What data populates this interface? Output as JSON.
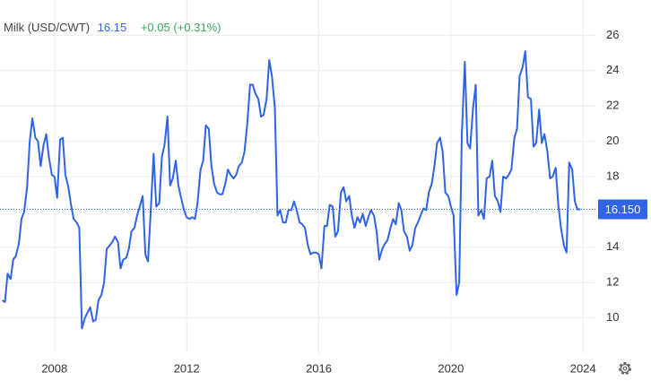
{
  "chart_data": {
    "type": "line",
    "title": "Milk (USD/CWT)",
    "last_price": 16.15,
    "change": "+0.05 (+0.31%)",
    "price_marker": {
      "value": 16.15,
      "label": "16.150"
    },
    "color": "#2f63e8",
    "grid": true,
    "xlim": [
      2006.35,
      2024.4
    ],
    "ylim": [
      8,
      28
    ],
    "xticks": [
      2008,
      2012,
      2016,
      2020,
      2024
    ],
    "yticks": [
      10,
      12,
      14,
      18,
      20,
      22,
      24,
      26
    ],
    "x": [
      2006.42,
      2006.5,
      2006.58,
      2006.67,
      2006.75,
      2006.83,
      2006.92,
      2007.0,
      2007.08,
      2007.17,
      2007.25,
      2007.33,
      2007.42,
      2007.5,
      2007.58,
      2007.67,
      2007.75,
      2007.83,
      2007.92,
      2008.0,
      2008.08,
      2008.17,
      2008.25,
      2008.33,
      2008.42,
      2008.5,
      2008.58,
      2008.67,
      2008.75,
      2008.83,
      2008.92,
      2009.0,
      2009.08,
      2009.17,
      2009.25,
      2009.33,
      2009.42,
      2009.5,
      2009.58,
      2009.67,
      2009.75,
      2009.83,
      2009.92,
      2010.0,
      2010.08,
      2010.17,
      2010.25,
      2010.33,
      2010.42,
      2010.5,
      2010.58,
      2010.67,
      2010.75,
      2010.83,
      2010.92,
      2011.0,
      2011.08,
      2011.17,
      2011.25,
      2011.33,
      2011.42,
      2011.5,
      2011.58,
      2011.67,
      2011.75,
      2011.83,
      2011.92,
      2012.0,
      2012.08,
      2012.17,
      2012.25,
      2012.33,
      2012.42,
      2012.5,
      2012.58,
      2012.67,
      2012.75,
      2012.83,
      2012.92,
      2013.0,
      2013.08,
      2013.17,
      2013.25,
      2013.33,
      2013.42,
      2013.5,
      2013.58,
      2013.67,
      2013.75,
      2013.83,
      2013.92,
      2014.0,
      2014.08,
      2014.17,
      2014.25,
      2014.33,
      2014.42,
      2014.5,
      2014.58,
      2014.67,
      2014.75,
      2014.83,
      2014.92,
      2015.0,
      2015.08,
      2015.17,
      2015.25,
      2015.33,
      2015.42,
      2015.5,
      2015.58,
      2015.67,
      2015.75,
      2015.83,
      2015.92,
      2016.0,
      2016.08,
      2016.17,
      2016.25,
      2016.33,
      2016.42,
      2016.5,
      2016.58,
      2016.67,
      2016.75,
      2016.83,
      2016.92,
      2017.0,
      2017.08,
      2017.17,
      2017.25,
      2017.33,
      2017.42,
      2017.5,
      2017.58,
      2017.67,
      2017.75,
      2017.83,
      2017.92,
      2018.0,
      2018.08,
      2018.17,
      2018.25,
      2018.33,
      2018.42,
      2018.5,
      2018.58,
      2018.67,
      2018.75,
      2018.83,
      2018.92,
      2019.0,
      2019.08,
      2019.17,
      2019.25,
      2019.33,
      2019.42,
      2019.5,
      2019.58,
      2019.67,
      2019.75,
      2019.83,
      2019.92,
      2020.0,
      2020.08,
      2020.17,
      2020.25,
      2020.33,
      2020.42,
      2020.5,
      2020.58,
      2020.67,
      2020.75,
      2020.83,
      2020.92,
      2021.0,
      2021.08,
      2021.17,
      2021.25,
      2021.33,
      2021.42,
      2021.5,
      2021.58,
      2021.67,
      2021.75,
      2021.83,
      2021.92,
      2022.0,
      2022.08,
      2022.17,
      2022.25,
      2022.33,
      2022.42,
      2022.5,
      2022.58,
      2022.67,
      2022.75,
      2022.83,
      2022.92,
      2023.0,
      2023.08,
      2023.17,
      2023.25,
      2023.33,
      2023.42,
      2023.5,
      2023.58,
      2023.67,
      2023.75,
      2023.83,
      2023.92
    ],
    "values": [
      11.0,
      10.9,
      12.5,
      12.2,
      13.3,
      13.5,
      14.2,
      15.6,
      16.0,
      17.4,
      20.0,
      21.3,
      20.2,
      20.0,
      18.6,
      19.8,
      20.4,
      19.1,
      18.1,
      18.0,
      16.8,
      20.1,
      20.2,
      18.1,
      17.4,
      16.4,
      15.6,
      15.4,
      15.1,
      9.4,
      10.0,
      10.3,
      10.6,
      9.8,
      9.9,
      11.0,
      11.3,
      12.0,
      13.9,
      14.1,
      14.3,
      14.6,
      14.3,
      12.8,
      13.3,
      13.4,
      13.9,
      14.9,
      15.1,
      15.8,
      16.3,
      16.9,
      13.6,
      13.2,
      16.3,
      19.3,
      16.3,
      16.5,
      19.1,
      19.8,
      21.4,
      17.5,
      17.9,
      18.9,
      17.5,
      16.8,
      16.1,
      15.7,
      15.6,
      15.7,
      15.6,
      16.5,
      18.4,
      18.9,
      20.9,
      20.7,
      18.6,
      17.6,
      17.1,
      17.0,
      17.0,
      17.6,
      18.4,
      18.1,
      17.9,
      18.1,
      18.6,
      18.8,
      19.4,
      20.9,
      23.2,
      23.2,
      22.7,
      22.4,
      21.4,
      21.5,
      22.4,
      24.6,
      23.7,
      21.9,
      15.8,
      16.1,
      15.4,
      15.4,
      16.1,
      16.1,
      16.6,
      16.1,
      15.4,
      15.3,
      15.1,
      14.1,
      13.6,
      13.7,
      13.7,
      13.6,
      12.8,
      15.2,
      15.2,
      16.4,
      16.3,
      14.6,
      14.9,
      17.1,
      17.4,
      16.6,
      16.9,
      15.8,
      15.1,
      15.7,
      15.4,
      15.9,
      15.2,
      15.7,
      16.1,
      15.8,
      14.9,
      13.3,
      13.9,
      14.2,
      14.4,
      15.1,
      15.6,
      15.3,
      16.5,
      16.1,
      14.9,
      14.6,
      13.8,
      14.1,
      15.1,
      15.4,
      15.8,
      16.2,
      16.1,
      17.1,
      17.6,
      18.6,
      19.9,
      20.2,
      19.4,
      17.1,
      16.9,
      16.3,
      15.8,
      11.3,
      12.0,
      20.4,
      24.5,
      19.9,
      19.6,
      21.9,
      23.2,
      15.8,
      16.1,
      15.6,
      17.9,
      18.0,
      18.9,
      16.9,
      16.6,
      16.0,
      18.0,
      17.9,
      18.1,
      18.4,
      20.2,
      20.7,
      23.7,
      24.2,
      25.1,
      22.5,
      22.4,
      19.7,
      19.9,
      21.8,
      19.9,
      20.4,
      19.4,
      17.9,
      18.0,
      18.5,
      16.4,
      15.1,
      14.1,
      13.7,
      18.8,
      18.4,
      16.6,
      16.15,
      16.15
    ]
  }
}
